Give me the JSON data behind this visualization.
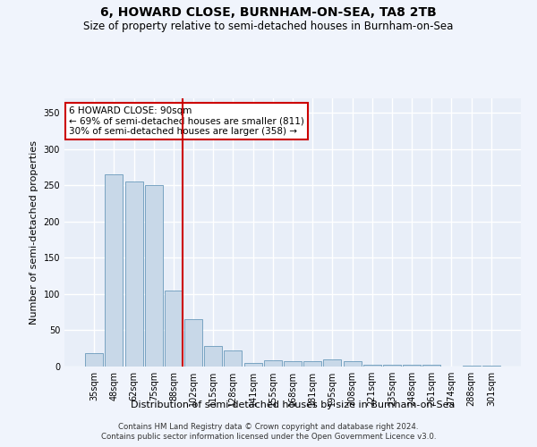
{
  "title": "6, HOWARD CLOSE, BURNHAM-ON-SEA, TA8 2TB",
  "subtitle": "Size of property relative to semi-detached houses in Burnham-on-Sea",
  "xlabel": "Distribution of semi-detached houses by size in Burnham-on-Sea",
  "ylabel": "Number of semi-detached properties",
  "footer_line1": "Contains HM Land Registry data © Crown copyright and database right 2024.",
  "footer_line2": "Contains public sector information licensed under the Open Government Licence v3.0.",
  "categories": [
    "35sqm",
    "48sqm",
    "62sqm",
    "75sqm",
    "88sqm",
    "102sqm",
    "115sqm",
    "128sqm",
    "141sqm",
    "155sqm",
    "168sqm",
    "181sqm",
    "195sqm",
    "208sqm",
    "221sqm",
    "235sqm",
    "248sqm",
    "261sqm",
    "274sqm",
    "288sqm",
    "301sqm"
  ],
  "values": [
    18,
    265,
    255,
    250,
    105,
    65,
    28,
    22,
    5,
    9,
    8,
    7,
    10,
    8,
    3,
    3,
    2,
    2,
    0,
    1,
    1
  ],
  "bar_color": "#c8d8e8",
  "bar_edge_color": "#6a9abb",
  "vline_x": 4.45,
  "vline_color": "#cc0000",
  "annotation_title": "6 HOWARD CLOSE: 90sqm",
  "annotation_line1": "← 69% of semi-detached houses are smaller (811)",
  "annotation_line2": "30% of semi-detached houses are larger (358) →",
  "annotation_box_color": "#ffffff",
  "annotation_box_edge": "#cc0000",
  "ylim": [
    0,
    370
  ],
  "yticks": [
    0,
    50,
    100,
    150,
    200,
    250,
    300,
    350
  ],
  "bg_color": "#e8eef8",
  "grid_color": "#ffffff",
  "title_fontsize": 10,
  "subtitle_fontsize": 8.5,
  "axis_label_fontsize": 8,
  "tick_fontsize": 7
}
